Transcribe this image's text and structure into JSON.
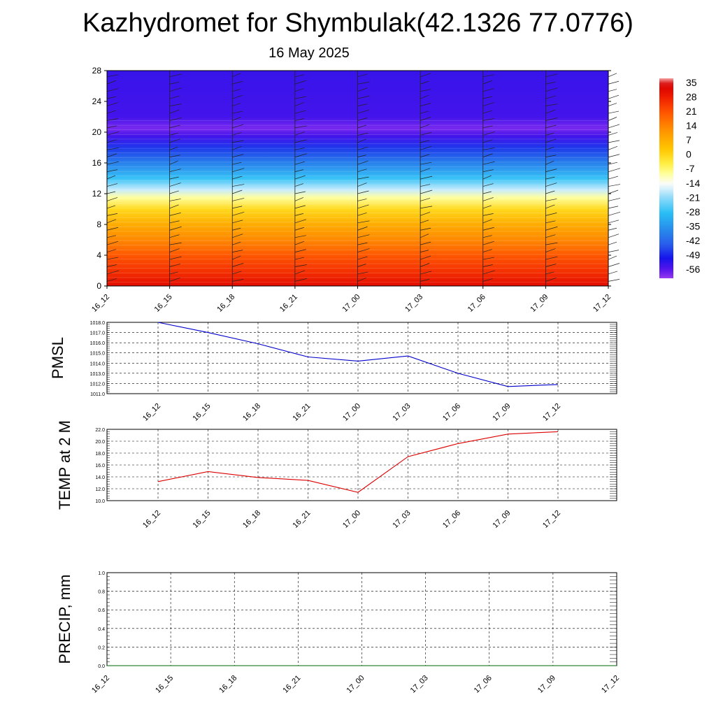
{
  "header": {
    "title": "Kazhydromet for Shymbulak(42.1326 77.0776)",
    "date": "16 May 2025"
  },
  "colors": {
    "pmsl_line": "#0000cc",
    "temp_line": "#dd0000",
    "precip_line": "#006600",
    "grid": "#000000"
  },
  "chart_data": [
    {
      "type": "heatmap",
      "name": "",
      "x": [
        "16_12",
        "16_15",
        "16_18",
        "16_21",
        "17_00",
        "17_03",
        "17_06",
        "17_09",
        "17_12"
      ],
      "y_ticks": [
        "0",
        "4",
        "8",
        "12",
        "16",
        "20",
        "24",
        "28"
      ],
      "ylim": [
        0,
        28
      ],
      "colorbar_labels": [
        "35",
        "28",
        "21",
        "14",
        "7",
        "0",
        "-7",
        "-14",
        "-21",
        "-28",
        "-35",
        "-42",
        "-49",
        "-56"
      ],
      "colorbar_range": [
        -60,
        38
      ],
      "temperature_profile": [
        {
          "y": 0,
          "t": 32
        },
        {
          "y": 2,
          "t": 26
        },
        {
          "y": 4,
          "t": 21
        },
        {
          "y": 6,
          "t": 14
        },
        {
          "y": 8,
          "t": 8
        },
        {
          "y": 10,
          "t": 0
        },
        {
          "y": 11.5,
          "t": -9
        },
        {
          "y": 12.5,
          "t": -17
        },
        {
          "y": 14,
          "t": -27
        },
        {
          "y": 16,
          "t": -38
        },
        {
          "y": 18,
          "t": -47
        },
        {
          "y": 19.5,
          "t": -54
        },
        {
          "y": 20.5,
          "t": -58
        },
        {
          "y": 22,
          "t": -54
        },
        {
          "y": 28,
          "t": -53
        }
      ]
    },
    {
      "type": "line",
      "ylabel": "PMSL",
      "categories": [
        "16_12",
        "16_15",
        "16_18",
        "16_21",
        "17_00",
        "17_03",
        "17_06",
        "17_09",
        "17_12"
      ],
      "y_ticks": [
        "1011.0",
        "1012.0",
        "1013.0",
        "1014.0",
        "1015.0",
        "1016.0",
        "1017.0",
        "1018.0"
      ],
      "ylim": [
        1011,
        1018
      ],
      "series": [
        {
          "values": [
            1018.0,
            1017.0,
            1015.9,
            1014.6,
            1014.2,
            1014.7,
            1013.0,
            1011.7,
            1011.9
          ]
        }
      ]
    },
    {
      "type": "line",
      "ylabel": "TEMP at 2 M",
      "categories": [
        "16_12",
        "16_15",
        "16_18",
        "16_21",
        "17_00",
        "17_03",
        "17_06",
        "17_09",
        "17_12"
      ],
      "y_ticks": [
        "10.0",
        "12.0",
        "14.0",
        "16.0",
        "18.0",
        "20.0",
        "22.0"
      ],
      "ylim": [
        10,
        22
      ],
      "series": [
        {
          "values": [
            13.2,
            14.9,
            13.9,
            13.4,
            11.4,
            17.4,
            19.6,
            21.2,
            21.6
          ]
        }
      ]
    },
    {
      "type": "line",
      "ylabel": "PRECIP, mm",
      "categories": [
        "16_12",
        "16_15",
        "16_18",
        "16_21",
        "17_00",
        "17_03",
        "17_06",
        "17_09",
        "17_12"
      ],
      "y_ticks": [
        "0.0",
        "0.2",
        "0.4",
        "0.6",
        "0.8",
        "1.0"
      ],
      "ylim": [
        0,
        1
      ],
      "series": [
        {
          "values": [
            0,
            0,
            0,
            0,
            0,
            0,
            0,
            0,
            0
          ]
        }
      ]
    }
  ]
}
